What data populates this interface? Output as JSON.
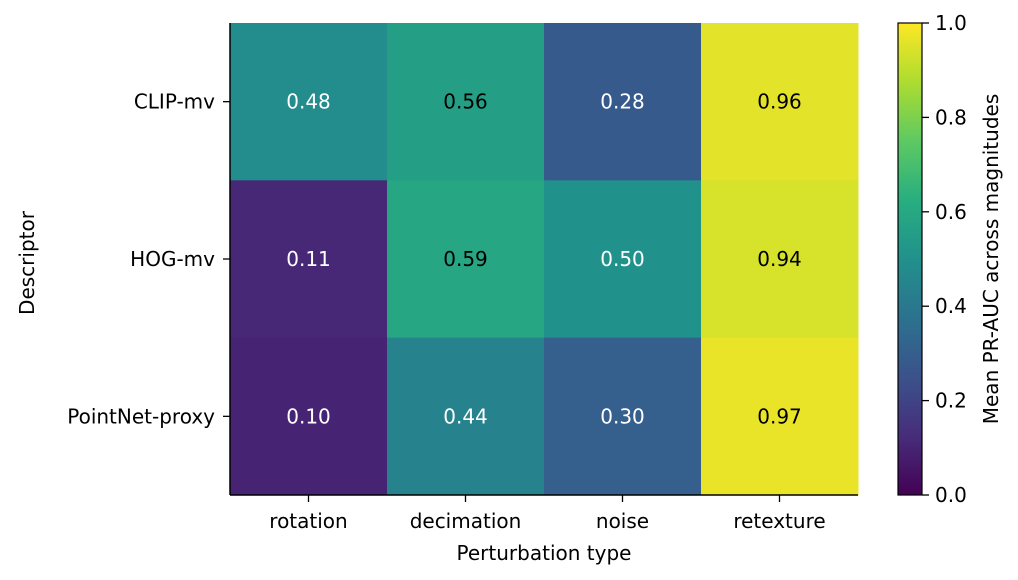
{
  "chart_data": {
    "type": "heatmap",
    "title": "",
    "xlabel": "Perturbation type",
    "ylabel": "Descriptor",
    "x_categories": [
      "rotation",
      "decimation",
      "noise",
      "retexture"
    ],
    "y_categories": [
      "CLIP-mv",
      "HOG-mv",
      "PointNet-proxy"
    ],
    "values": [
      [
        0.48,
        0.56,
        0.28,
        0.96
      ],
      [
        0.11,
        0.59,
        0.5,
        0.94
      ],
      [
        0.1,
        0.44,
        0.3,
        0.97
      ]
    ],
    "value_labels": [
      [
        "0.48",
        "0.56",
        "0.28",
        "0.96"
      ],
      [
        "0.11",
        "0.59",
        "0.50",
        "0.94"
      ],
      [
        "0.10",
        "0.44",
        "0.30",
        "0.97"
      ]
    ],
    "colormap": "viridis",
    "colorbar": {
      "label": "Mean PR-AUC across magnitudes",
      "range": [
        0.0,
        1.0
      ],
      "ticks": [
        "0.0",
        "0.2",
        "0.4",
        "0.6",
        "0.8",
        "1.0"
      ]
    },
    "grid": false
  }
}
